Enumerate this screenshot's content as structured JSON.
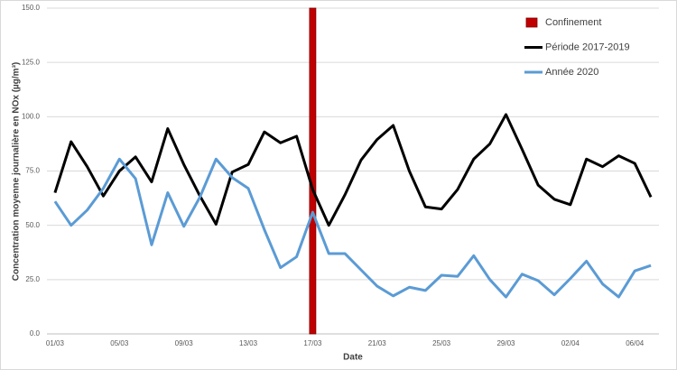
{
  "chart_data": {
    "type": "line",
    "x_label": "Date",
    "y_label": "Concentration moyenne journalière en NOx (µg/m³)",
    "categories": [
      "01/03",
      null,
      null,
      null,
      "05/03",
      null,
      null,
      null,
      "09/03",
      null,
      null,
      null,
      "13/03",
      null,
      null,
      null,
      "17/03",
      null,
      null,
      null,
      "21/03",
      null,
      null,
      null,
      "25/03",
      null,
      null,
      null,
      "29/03",
      null,
      null,
      null,
      "02/04",
      null,
      null,
      null,
      "06/04",
      null
    ],
    "series": [
      {
        "name": "Confinement",
        "type": "bar",
        "color": "#c00000",
        "values": [
          null,
          null,
          null,
          null,
          null,
          null,
          null,
          null,
          null,
          null,
          null,
          null,
          null,
          null,
          null,
          null,
          150,
          null,
          null,
          null,
          null,
          null,
          null,
          null,
          null,
          null,
          null,
          null,
          null,
          null,
          null,
          null,
          null,
          null,
          null,
          null,
          null,
          null
        ]
      },
      {
        "name": "Période 2017-2019",
        "type": "line",
        "color": "#000000",
        "values": [
          65,
          88.5,
          77,
          63.5,
          75,
          81.5,
          70,
          94.5,
          78,
          63.5,
          50.5,
          74.5,
          78,
          93,
          88,
          91,
          66.5,
          50,
          64,
          80,
          89.5,
          96,
          75,
          58.5,
          57.5,
          66.5,
          80.5,
          87.5,
          101,
          85,
          68.5,
          62,
          59.5,
          80.5,
          77,
          82,
          78.5,
          63
        ]
      },
      {
        "name": "Année 2020",
        "type": "line",
        "color": "#5b9bd5",
        "values": [
          61,
          50,
          57,
          67,
          80.5,
          71.5,
          41,
          65,
          49.5,
          63,
          80.5,
          72,
          67,
          48,
          30.5,
          35.5,
          56,
          37,
          37,
          29.5,
          22,
          17.5,
          21.5,
          20,
          27,
          26.5,
          36,
          25,
          17,
          27.5,
          24.5,
          18,
          25.5,
          33.5,
          23,
          17,
          29,
          31.5
        ]
      }
    ],
    "ylim": [
      0,
      150
    ],
    "yticks": [
      {
        "value": 0,
        "label": "0.0"
      },
      {
        "value": 25,
        "label": "25.0"
      },
      {
        "value": 50,
        "label": "50.0"
      },
      {
        "value": 75,
        "label": "75.0"
      },
      {
        "value": 100,
        "label": "100.0"
      },
      {
        "value": 125,
        "label": "125.0"
      },
      {
        "value": 150,
        "label": "150.0"
      }
    ],
    "grid": true
  }
}
